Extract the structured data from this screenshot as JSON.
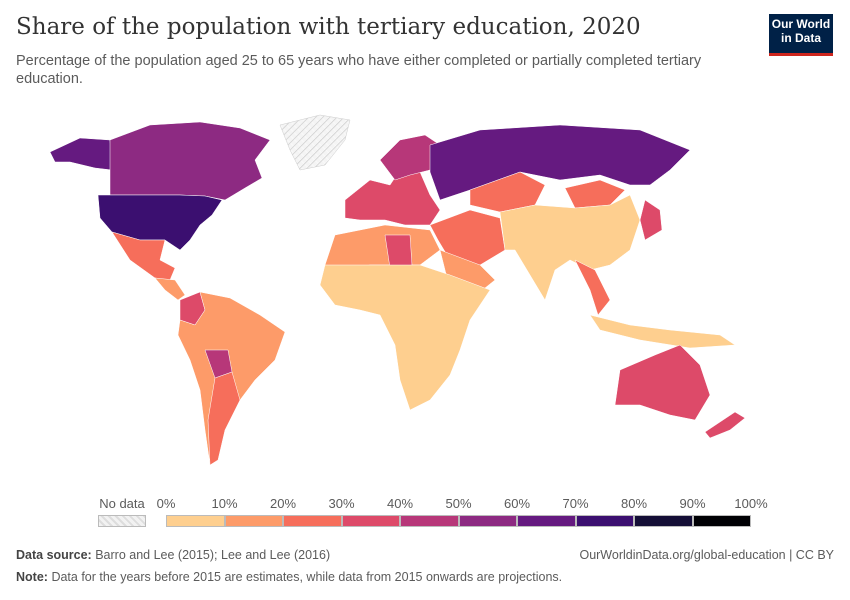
{
  "header": {
    "title": "Share of the population with tertiary education, 2020",
    "subtitle": "Percentage of the population aged 25 to 65 years who have either completed or partially completed tertiary education.",
    "logo": "Our World in Data"
  },
  "legend": {
    "no_data_label": "No data",
    "ticks": [
      "0%",
      "10%",
      "20%",
      "30%",
      "40%",
      "50%",
      "60%",
      "70%",
      "80%",
      "90%",
      "100%"
    ],
    "bins": [
      {
        "range": "0-10%",
        "color": "#fecf8f"
      },
      {
        "range": "10-20%",
        "color": "#fd9b69"
      },
      {
        "range": "20-30%",
        "color": "#f66e5b"
      },
      {
        "range": "30-40%",
        "color": "#dd4a69"
      },
      {
        "range": "40-50%",
        "color": "#b73779"
      },
      {
        "range": "50-60%",
        "color": "#8d2a82"
      },
      {
        "range": "60-70%",
        "color": "#651a80"
      },
      {
        "range": "70-80%",
        "color": "#3b0f70"
      },
      {
        "range": "80-90%",
        "color": "#140e36"
      },
      {
        "range": "90-100%",
        "color": "#000004"
      }
    ]
  },
  "footer": {
    "source_label": "Data source:",
    "source": "Barro and Lee (2015); Lee and Lee (2016)",
    "url": "OurWorldinData.org/global-education | CC BY",
    "note_label": "Note:",
    "note": "Data for the years before 2015 are estimates, while data from 2015 onwards are projections."
  }
}
